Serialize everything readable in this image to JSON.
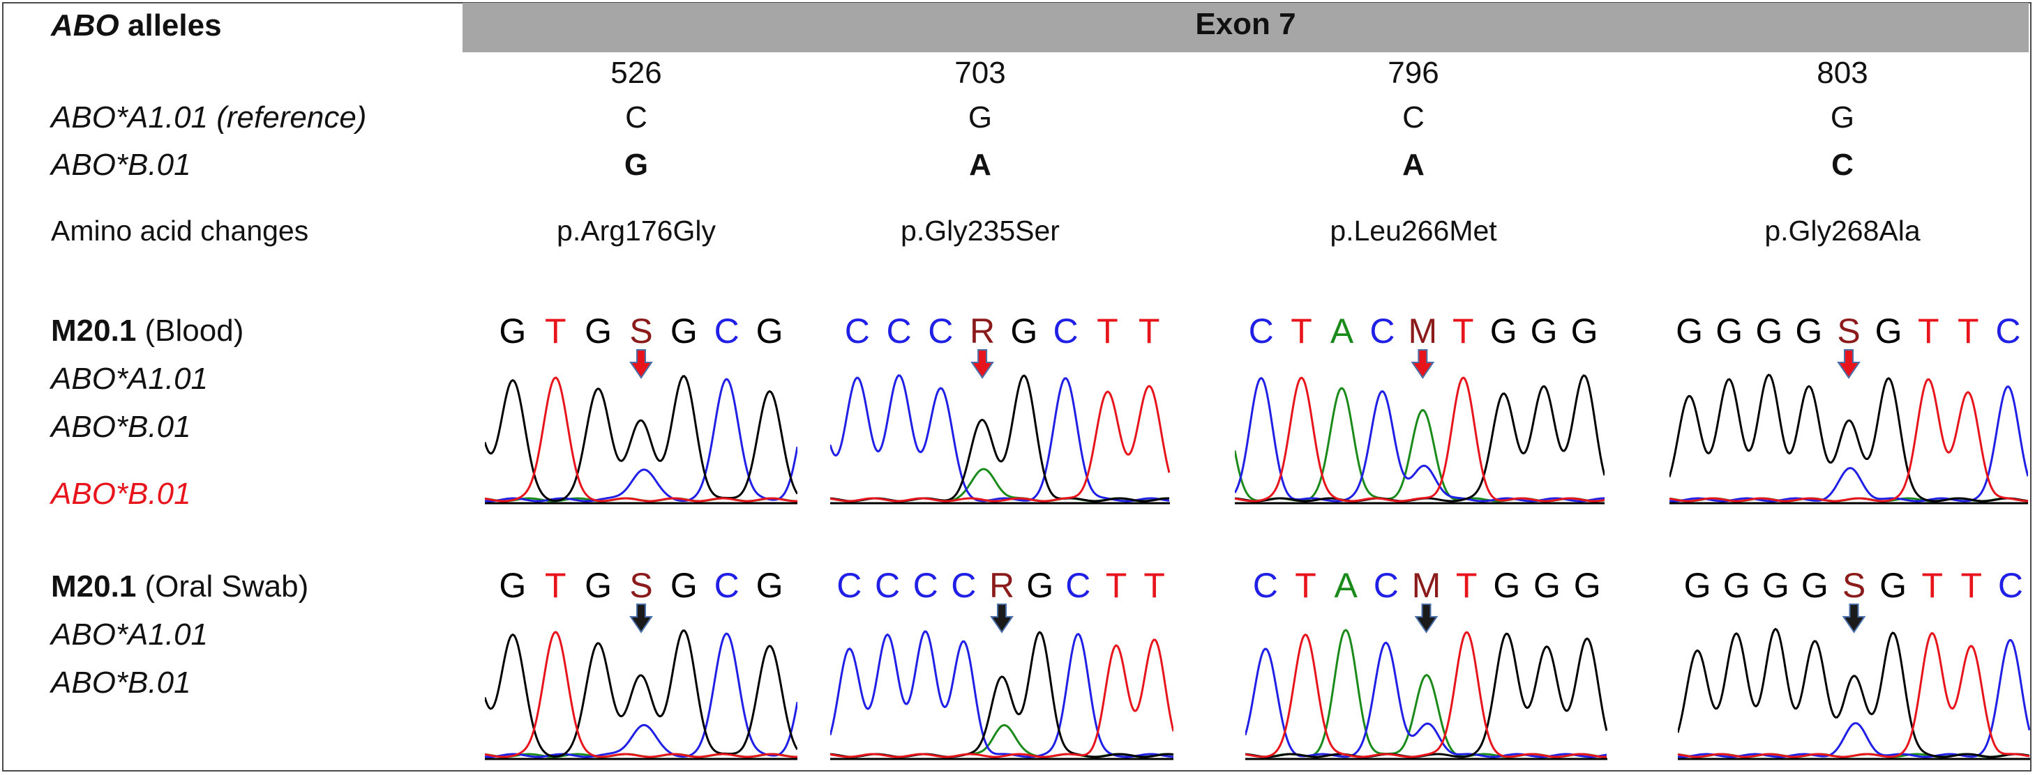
{
  "header": {
    "alleles_label_ital": "ABO",
    "alleles_label_rest": " alleles",
    "exon_title": "Exon 7"
  },
  "positions": [
    "526",
    "703",
    "796",
    "803"
  ],
  "reference": {
    "label": "ABO*A1.01 (reference)",
    "bases": [
      "C",
      "G",
      "C",
      "G"
    ]
  },
  "variant": {
    "label": "ABO*B.01",
    "bases": [
      "G",
      "A",
      "A",
      "C"
    ]
  },
  "amino_acids": {
    "label": "Amino acid changes",
    "changes": [
      "p.Arg176Gly",
      "p.Gly235Ser",
      "p.Leu266Met",
      "p.Gly268Ala"
    ]
  },
  "samples": [
    {
      "id": "M20.1",
      "source": " (Blood)",
      "alleles": [
        "ABO*A1.01",
        "ABO*B.01"
      ],
      "extra_allele": "ABO*B.01",
      "extra_allele_color": "#e8141c",
      "arrow_color": "#e8141c"
    },
    {
      "id": "M20.1",
      "source": " (Oral Swab)",
      "alleles": [
        "ABO*A1.01",
        "ABO*B.01"
      ],
      "arrow_color": "#1a1a1a"
    }
  ],
  "colors": {
    "A": "#1a8a1a",
    "C": "#1f1fe6",
    "G": "#000000",
    "T": "#e8141c",
    "ambiguous": "#8b1a1a",
    "header_band": "#a6a6a6"
  },
  "chromatograms": {
    "blood": [
      {
        "seq": "GGTGSGCGC",
        "ambig_index": 4,
        "first_partial": true,
        "last_partial": true
      },
      {
        "seq": "CCCCRGCTT",
        "ambig_index": 4,
        "first_partial": true,
        "last_partial": false
      },
      {
        "seq": "ACTACMTGGG",
        "ambig_index": 5,
        "first_partial": true,
        "last_partial": false
      },
      {
        "seq": "GGGGSGTTC",
        "ambig_index": 4,
        "first_partial": false,
        "last_partial": false
      }
    ],
    "swab": [
      {
        "seq": "GGTGSGCGC",
        "ambig_index": 4,
        "first_partial": true,
        "last_partial": true
      },
      {
        "seq": "CCCCRGCTT",
        "ambig_index": 4,
        "first_partial": false,
        "last_partial": false
      },
      {
        "seq": "CTACMTGGG",
        "ambig_index": 4,
        "first_partial": false,
        "last_partial": false
      },
      {
        "seq": "GGGGSGTTC",
        "ambig_index": 4,
        "first_partial": false,
        "last_partial": false
      }
    ]
  }
}
